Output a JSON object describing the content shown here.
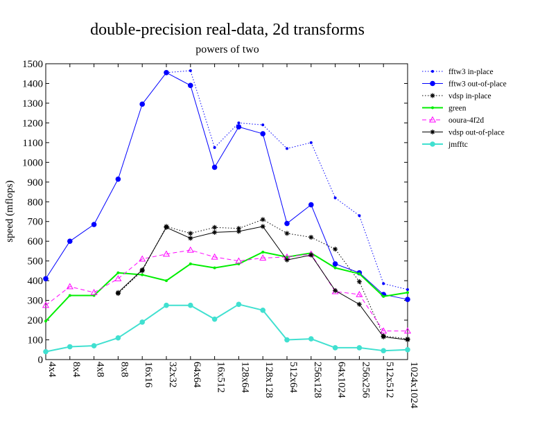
{
  "chart_data": {
    "type": "line",
    "title": "double-precision real-data, 2d transforms",
    "subtitle": "powers of two",
    "ylabel": "speed (mflops)",
    "xlabel": "",
    "ylim": [
      0,
      1500
    ],
    "yticks": [
      0,
      100,
      200,
      300,
      400,
      500,
      600,
      700,
      800,
      900,
      1000,
      1100,
      1200,
      1300,
      1400,
      1500
    ],
    "categories": [
      "4x4",
      "8x4",
      "4x8",
      "8x8",
      "16x16",
      "32x32",
      "64x64",
      "16x512",
      "128x64",
      "128x128",
      "512x64",
      "256x128",
      "64x1024",
      "256x256",
      "512x512",
      "1024x1024"
    ],
    "grid": false,
    "legend_position": "top-right",
    "series": [
      {
        "name": "fftw3 in-place",
        "color": "#0000ff",
        "dash": "dotted",
        "marker": "small-dot",
        "values": [
          null,
          null,
          null,
          null,
          null,
          1455,
          1465,
          1075,
          1200,
          1190,
          1070,
          1100,
          820,
          730,
          385,
          355
        ]
      },
      {
        "name": "fftw3 out-of-place",
        "color": "#0000ff",
        "dash": "solid",
        "marker": "dot",
        "values": [
          410,
          600,
          685,
          915,
          1295,
          1455,
          1390,
          975,
          1180,
          1145,
          690,
          785,
          485,
          440,
          330,
          305
        ]
      },
      {
        "name": "vdsp in-place",
        "color": "#000000",
        "dash": "dotted",
        "marker": "asterisk",
        "values": [
          null,
          null,
          null,
          335,
          450,
          675,
          640,
          670,
          665,
          710,
          640,
          620,
          560,
          395,
          120,
          105
        ]
      },
      {
        "name": "green",
        "color": "#00ee00",
        "dash": "solid",
        "marker": "small-dot",
        "width": 2,
        "values": [
          195,
          325,
          325,
          440,
          430,
          400,
          485,
          465,
          485,
          545,
          520,
          540,
          465,
          435,
          320,
          340
        ]
      },
      {
        "name": "ooura-4f2d",
        "color": "#ff00ff",
        "dash": "dashed",
        "marker": "triangle",
        "values": [
          275,
          370,
          340,
          410,
          510,
          535,
          555,
          520,
          500,
          515,
          520,
          535,
          345,
          330,
          145,
          145
        ]
      },
      {
        "name": "vdsp out-of-place",
        "color": "#000000",
        "dash": "solid",
        "marker": "asterisk",
        "values": [
          null,
          null,
          null,
          340,
          455,
          670,
          615,
          645,
          650,
          675,
          505,
          530,
          350,
          280,
          115,
          100
        ]
      },
      {
        "name": "jmfftc",
        "color": "#40e0d0",
        "dash": "solid",
        "marker": "dot",
        "width": 2,
        "values": [
          40,
          65,
          70,
          110,
          190,
          275,
          275,
          205,
          280,
          250,
          100,
          105,
          60,
          60,
          45,
          50
        ]
      }
    ]
  }
}
